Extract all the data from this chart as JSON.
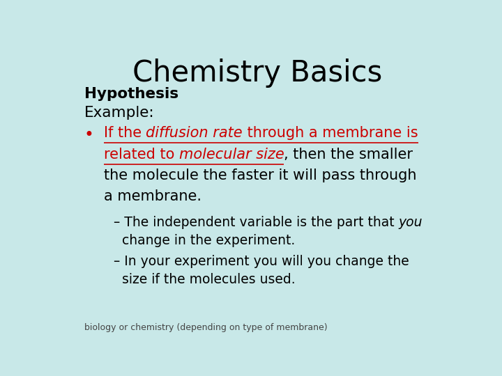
{
  "title": "Chemistry Basics",
  "background_color": "#c8e8e8",
  "title_color": "#000000",
  "title_fontsize": 30,
  "hypothesis_label": "Hypothesis",
  "example_label": "Example:",
  "bullet_color": "#cc0000",
  "black_color": "#000000",
  "footer": "biology or chemistry (depending on type of membrane)",
  "bullet_fs": 15.0,
  "dash_fs": 13.5,
  "footer_fs": 9.0
}
